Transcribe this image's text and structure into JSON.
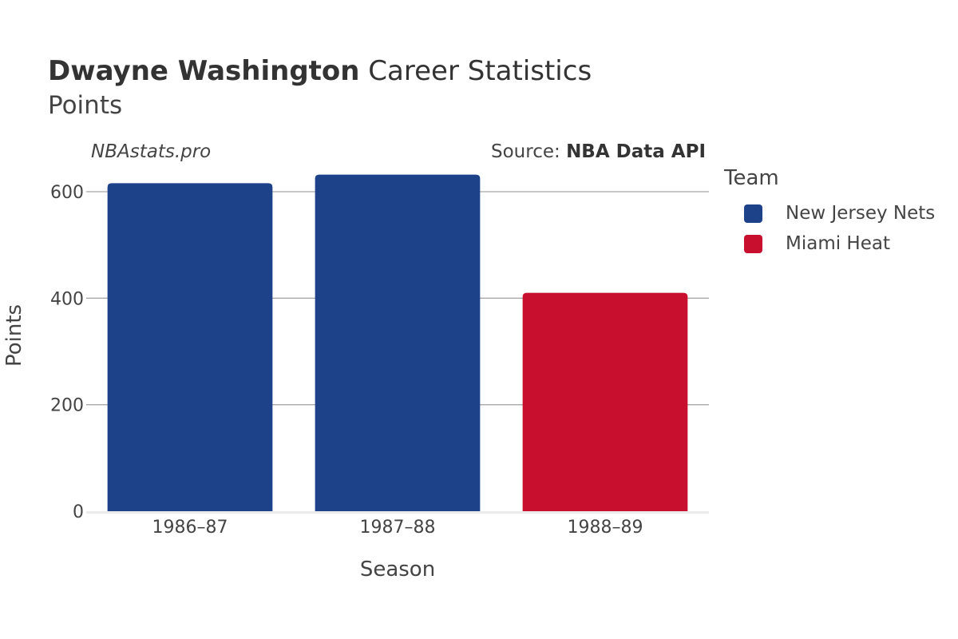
{
  "header": {
    "title_bold": "Dwayne Washington",
    "title_rest": " Career Statistics",
    "subtitle": "Points",
    "site": "NBAstats.pro",
    "source_prefix": "Source: ",
    "source_name": "NBA Data API"
  },
  "legend": {
    "title": "Team",
    "items": [
      {
        "label": "New Jersey Nets",
        "color": "#1d428a"
      },
      {
        "label": "Miami Heat",
        "color": "#c8102e"
      }
    ]
  },
  "chart_data": {
    "type": "bar",
    "title": "Dwayne Washington Career Statistics",
    "subtitle": "Points",
    "xlabel": "Season",
    "ylabel": "Points",
    "categories": [
      "1986–87",
      "1987–88",
      "1988–89"
    ],
    "values": [
      616,
      632,
      410
    ],
    "teams": [
      "New Jersey Nets",
      "New Jersey Nets",
      "Miami Heat"
    ],
    "colors": [
      "#1d428a",
      "#1d428a",
      "#c8102e"
    ],
    "ylim": [
      0,
      650
    ],
    "yticks": [
      0,
      200,
      400,
      600
    ],
    "grid": true,
    "legend_position": "right"
  }
}
